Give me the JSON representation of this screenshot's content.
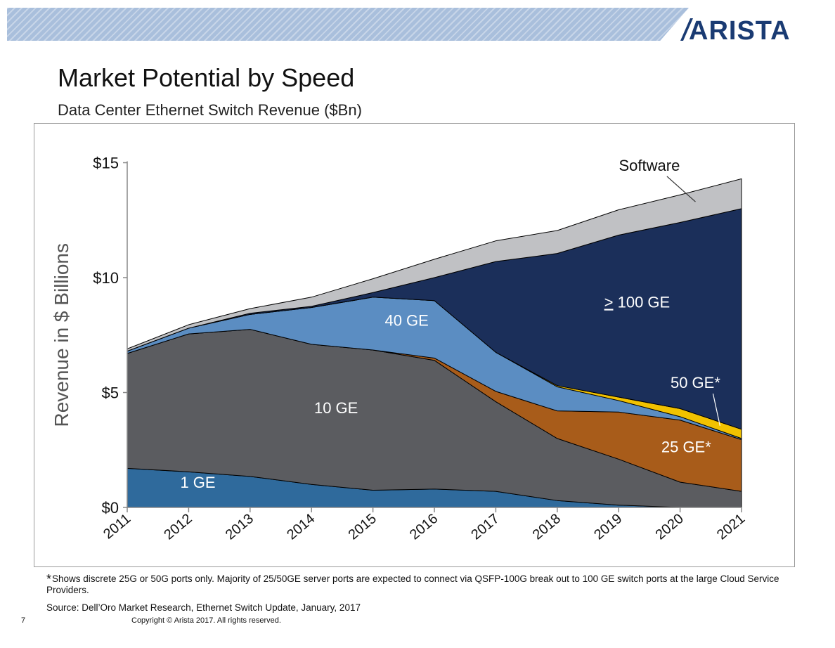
{
  "slide": {
    "logo_text": "ARISTA",
    "title": "Market Potential by Speed",
    "subtitle": "Data Center Ethernet Switch Revenue ($Bn)",
    "footnote_marker": "*",
    "footnote": "Shows discrete 25G or 50G ports only. Majority of 25/50GE server ports are expected to connect via QSFP-100G break out to 100 GE switch ports at the large Cloud Service Providers.",
    "source": "Source: Dell’Oro Market Research, Ethernet Switch Update, January, 2017",
    "page_number": "7",
    "copyright": "Copyright © Arista 2017. All rights reserved.",
    "colors": {
      "banner": "#a9bfdc",
      "logo": "#1a3b73"
    }
  },
  "chart_data": {
    "type": "area",
    "stacked": true,
    "title": "",
    "xlabel": "",
    "ylabel": "Revenue in $ Billions",
    "x": [
      "2011",
      "2012",
      "2013",
      "2014",
      "2015",
      "2016",
      "2017",
      "2018",
      "2019",
      "2020",
      "2021"
    ],
    "ylim": [
      0,
      15
    ],
    "yticks": [
      0,
      5,
      10,
      15
    ],
    "ytick_labels": [
      "$0",
      "$5",
      "$10",
      "$15"
    ],
    "grid": false,
    "series": [
      {
        "name": "1 GE",
        "color": "#2f6a9c",
        "label_color": "#ffffff",
        "values": [
          1.7,
          1.55,
          1.35,
          1.0,
          0.75,
          0.8,
          0.7,
          0.3,
          0.1,
          0.0,
          0.0
        ]
      },
      {
        "name": "10 GE",
        "color": "#5b5c60",
        "label_color": "#ffffff",
        "values": [
          5.0,
          6.0,
          6.4,
          6.1,
          6.1,
          5.6,
          3.9,
          2.7,
          2.0,
          1.1,
          0.7
        ]
      },
      {
        "name": "25 GE*",
        "color": "#a85c1a",
        "label_color": "#ffffff",
        "values": [
          0,
          0,
          0,
          0,
          0,
          0.1,
          0.45,
          1.2,
          2.05,
          2.7,
          2.25
        ]
      },
      {
        "name": "40 GE",
        "color": "#5b8dc2",
        "label_color": "#ffffff",
        "values": [
          0.1,
          0.25,
          0.65,
          1.6,
          2.3,
          2.5,
          1.7,
          1.05,
          0.5,
          0.15,
          0.05
        ]
      },
      {
        "name": "50 GE*",
        "color": "#f2c200",
        "label_color": "#ffffff",
        "values": [
          0,
          0,
          0,
          0,
          0,
          0,
          0,
          0.05,
          0.15,
          0.35,
          0.4
        ]
      },
      {
        "name": "> 100 GE",
        "color": "#1b2f5a",
        "label_color": "#ffffff",
        "values": [
          0,
          0,
          0.05,
          0.05,
          0.2,
          1.0,
          3.95,
          5.75,
          7.05,
          8.1,
          9.6
        ]
      },
      {
        "name": "Software",
        "color": "#c0c1c4",
        "label_color": "#111111",
        "values": [
          0.1,
          0.15,
          0.2,
          0.4,
          0.6,
          0.8,
          0.9,
          1.0,
          1.1,
          1.2,
          1.3
        ]
      }
    ],
    "annotations": [
      {
        "text": "Software",
        "points_to": "Software"
      },
      {
        "text": "50 GE*",
        "points_to": "50 GE*"
      }
    ]
  }
}
